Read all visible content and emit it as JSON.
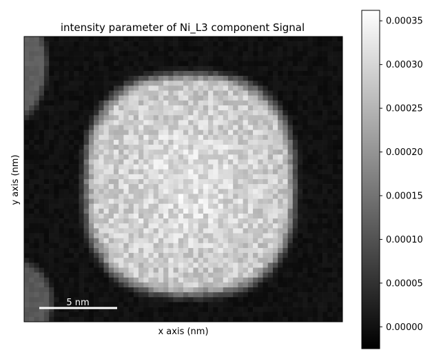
{
  "chart_data": {
    "type": "heatmap",
    "title": "intensity parameter of Ni_L3 component Signal",
    "xlabel": "x axis (nm)",
    "ylabel": "y axis (nm)",
    "colormap": "gray",
    "grid": false,
    "legend": "none",
    "value_range": [
      -2.5e-05,
      0.000362
    ],
    "grid_size": [
      64,
      58
    ],
    "colorbar": {
      "ticks": [
        0.0,
        5e-05,
        0.0001,
        0.00015,
        0.0002,
        0.00025,
        0.0003,
        0.00035
      ],
      "tick_labels": [
        "0.00000",
        "0.00005",
        "0.00010",
        "0.00015",
        "0.00020",
        "0.00025",
        "0.00030",
        "0.00035"
      ]
    },
    "scalebar": {
      "label": "5 nm",
      "color": "#ffffff"
    },
    "features": [
      {
        "name": "central particle",
        "peak_intensity": 0.00032,
        "shape": "rounded polygon"
      },
      {
        "name": "top-left particle edge",
        "peak_intensity": 0.00012
      },
      {
        "name": "bottom-left particle edge",
        "peak_intensity": 0.00011
      }
    ],
    "background_intensity": 0.0
  }
}
